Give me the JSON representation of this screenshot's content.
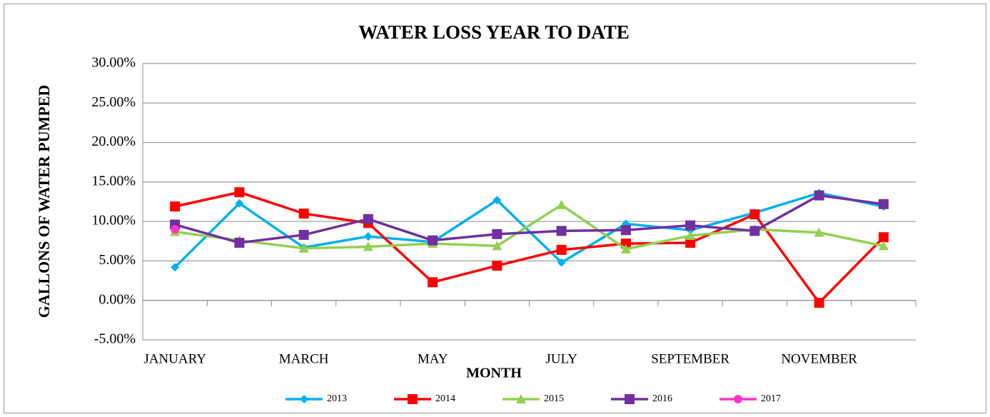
{
  "chart_data": {
    "type": "line",
    "title": "WATER LOSS YEAR TO DATE",
    "x_label": "MONTH",
    "y_label": "GALLONS OF WATER PUMPED",
    "categories": [
      "JANUARY",
      null,
      "MARCH",
      null,
      "MAY",
      null,
      "JULY",
      null,
      "SEPTEMBER",
      null,
      "NOVEMBER",
      null
    ],
    "ylim": [
      -5,
      30
    ],
    "yticks": [
      {
        "value": -5,
        "label": "-5.00%"
      },
      {
        "value": 0,
        "label": "0.00%"
      },
      {
        "value": 5,
        "label": "5.00%"
      },
      {
        "value": 10,
        "label": "10.00%"
      },
      {
        "value": 15,
        "label": "15.00%"
      },
      {
        "value": 20,
        "label": "20.00%"
      },
      {
        "value": 25,
        "label": "25.00%"
      },
      {
        "value": 30,
        "label": "30.00%"
      }
    ],
    "grid": true,
    "legend": "bottom",
    "series": [
      {
        "name": "2013",
        "color": "#00b0f0",
        "marker": "diamond",
        "values": [
          4.2,
          12.3,
          6.7,
          8.1,
          7.4,
          12.7,
          4.8,
          9.7,
          8.9,
          11.1,
          13.6,
          11.9
        ]
      },
      {
        "name": "2014",
        "color": "#ff0000",
        "marker": "square",
        "values": [
          11.9,
          13.7,
          11.0,
          9.8,
          2.3,
          4.4,
          6.4,
          7.2,
          7.3,
          10.9,
          -0.3,
          8.0
        ]
      },
      {
        "name": "2015",
        "color": "#92d050",
        "marker": "triangle",
        "values": [
          8.7,
          7.6,
          6.6,
          6.8,
          7.2,
          6.9,
          12.1,
          6.5,
          8.2,
          9.0,
          8.6,
          6.9
        ]
      },
      {
        "name": "2016",
        "color": "#7030a0",
        "marker": "square",
        "values": [
          9.6,
          7.3,
          8.3,
          10.3,
          7.6,
          8.4,
          8.8,
          8.9,
          9.5,
          8.8,
          13.3,
          12.2
        ]
      },
      {
        "name": "2017",
        "color": "#ff33cc",
        "marker": "circle",
        "values": [
          9.0,
          null,
          null,
          null,
          null,
          null,
          null,
          null,
          null,
          null,
          null,
          null
        ]
      }
    ]
  }
}
